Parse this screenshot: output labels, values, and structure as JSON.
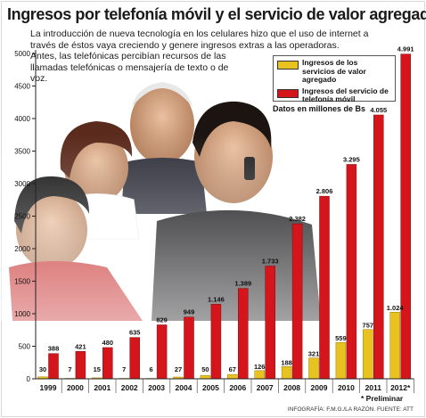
{
  "chart_data": {
    "type": "bar",
    "title": "Ingresos por telefonía móvil y el servicio de valor agregado",
    "subtitle": [
      "La introducción de nueva tecnología en los celulares hizo que el uso de internet a través de éstos vaya creciendo y genere ingresos extras a las operadoras.",
      "Antes, las telefónicas percibían recursos de las llamadas telefónicas o mensajería de texto o de voz."
    ],
    "units_note": "Datos en millones de Bs",
    "categories": [
      "1999",
      "2000",
      "2001",
      "2002",
      "2003",
      "2004",
      "2005",
      "2006",
      "2007",
      "2008",
      "2009",
      "2010",
      "2011",
      "2012*"
    ],
    "series": [
      {
        "name": "Ingresos de los servicios de valor agregado",
        "color": "#e8c21f",
        "values": [
          30,
          7,
          15,
          7,
          6,
          27,
          50,
          67,
          126,
          188,
          321,
          559,
          757,
          1024
        ],
        "labels": [
          "30",
          "7",
          "15",
          "7",
          "6",
          "27",
          "50",
          "67",
          "126",
          "188",
          "321",
          "559",
          "757",
          "1.024"
        ]
      },
      {
        "name": "Ingresos del servicio de telefonía móvil",
        "color": "#d4161c",
        "values": [
          388,
          421,
          480,
          635,
          829,
          949,
          1146,
          1389,
          1733,
          2382,
          2806,
          3295,
          4055,
          4991
        ],
        "labels": [
          "388",
          "421",
          "480",
          "635",
          "829",
          "949",
          "1.146",
          "1.389",
          "1.733",
          "2.382",
          "2.806",
          "3.295",
          "4.055",
          "4.991"
        ]
      }
    ],
    "y_ticks": [
      0,
      500,
      1000,
      1500,
      2000,
      2500,
      3000,
      3500,
      4000,
      4500,
      5000
    ],
    "ylim": [
      0,
      5000
    ],
    "grid": false,
    "legend_position": "top-right",
    "footnote": "* Preliminar",
    "credit": "INFOGRAFÍA: F.M.G./LA RAZÓN. FUENTE: ATT"
  }
}
